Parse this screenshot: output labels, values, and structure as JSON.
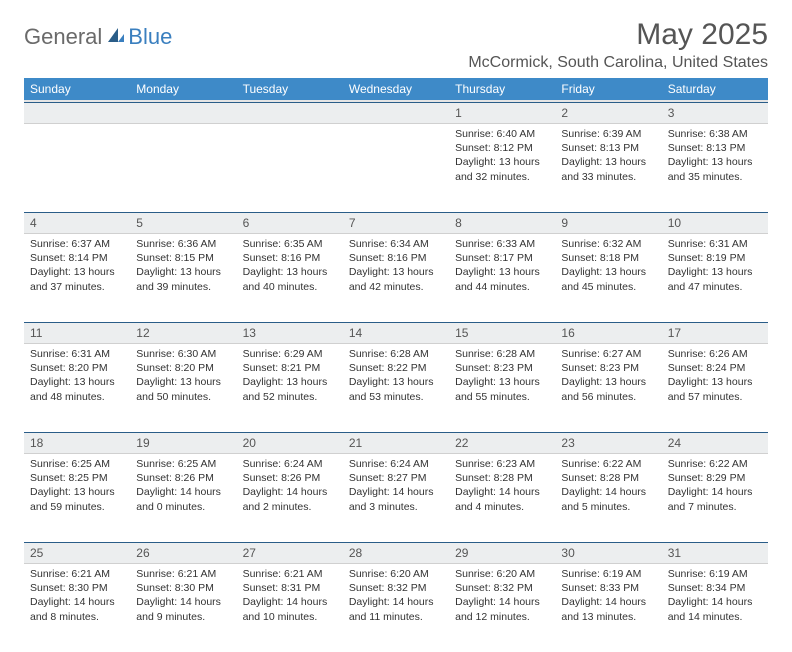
{
  "logo": {
    "general": "General",
    "blue": "Blue"
  },
  "title": "May 2025",
  "location": "McCormick, South Carolina, United States",
  "colors": {
    "header_bg": "#3e8ac8",
    "header_text": "#ffffff",
    "daynum_bg": "#eceeef",
    "rule": "#2a5d88",
    "text": "#333333",
    "logo_gray": "#6a6a6a",
    "logo_blue": "#3a7fbf"
  },
  "weekdays": [
    "Sunday",
    "Monday",
    "Tuesday",
    "Wednesday",
    "Thursday",
    "Friday",
    "Saturday"
  ],
  "weeks": [
    [
      null,
      null,
      null,
      null,
      {
        "n": "1",
        "sr": "6:40 AM",
        "ss": "8:12 PM",
        "dl": "13 hours and 32 minutes."
      },
      {
        "n": "2",
        "sr": "6:39 AM",
        "ss": "8:13 PM",
        "dl": "13 hours and 33 minutes."
      },
      {
        "n": "3",
        "sr": "6:38 AM",
        "ss": "8:13 PM",
        "dl": "13 hours and 35 minutes."
      }
    ],
    [
      {
        "n": "4",
        "sr": "6:37 AM",
        "ss": "8:14 PM",
        "dl": "13 hours and 37 minutes."
      },
      {
        "n": "5",
        "sr": "6:36 AM",
        "ss": "8:15 PM",
        "dl": "13 hours and 39 minutes."
      },
      {
        "n": "6",
        "sr": "6:35 AM",
        "ss": "8:16 PM",
        "dl": "13 hours and 40 minutes."
      },
      {
        "n": "7",
        "sr": "6:34 AM",
        "ss": "8:16 PM",
        "dl": "13 hours and 42 minutes."
      },
      {
        "n": "8",
        "sr": "6:33 AM",
        "ss": "8:17 PM",
        "dl": "13 hours and 44 minutes."
      },
      {
        "n": "9",
        "sr": "6:32 AM",
        "ss": "8:18 PM",
        "dl": "13 hours and 45 minutes."
      },
      {
        "n": "10",
        "sr": "6:31 AM",
        "ss": "8:19 PM",
        "dl": "13 hours and 47 minutes."
      }
    ],
    [
      {
        "n": "11",
        "sr": "6:31 AM",
        "ss": "8:20 PM",
        "dl": "13 hours and 48 minutes."
      },
      {
        "n": "12",
        "sr": "6:30 AM",
        "ss": "8:20 PM",
        "dl": "13 hours and 50 minutes."
      },
      {
        "n": "13",
        "sr": "6:29 AM",
        "ss": "8:21 PM",
        "dl": "13 hours and 52 minutes."
      },
      {
        "n": "14",
        "sr": "6:28 AM",
        "ss": "8:22 PM",
        "dl": "13 hours and 53 minutes."
      },
      {
        "n": "15",
        "sr": "6:28 AM",
        "ss": "8:23 PM",
        "dl": "13 hours and 55 minutes."
      },
      {
        "n": "16",
        "sr": "6:27 AM",
        "ss": "8:23 PM",
        "dl": "13 hours and 56 minutes."
      },
      {
        "n": "17",
        "sr": "6:26 AM",
        "ss": "8:24 PM",
        "dl": "13 hours and 57 minutes."
      }
    ],
    [
      {
        "n": "18",
        "sr": "6:25 AM",
        "ss": "8:25 PM",
        "dl": "13 hours and 59 minutes."
      },
      {
        "n": "19",
        "sr": "6:25 AM",
        "ss": "8:26 PM",
        "dl": "14 hours and 0 minutes."
      },
      {
        "n": "20",
        "sr": "6:24 AM",
        "ss": "8:26 PM",
        "dl": "14 hours and 2 minutes."
      },
      {
        "n": "21",
        "sr": "6:24 AM",
        "ss": "8:27 PM",
        "dl": "14 hours and 3 minutes."
      },
      {
        "n": "22",
        "sr": "6:23 AM",
        "ss": "8:28 PM",
        "dl": "14 hours and 4 minutes."
      },
      {
        "n": "23",
        "sr": "6:22 AM",
        "ss": "8:28 PM",
        "dl": "14 hours and 5 minutes."
      },
      {
        "n": "24",
        "sr": "6:22 AM",
        "ss": "8:29 PM",
        "dl": "14 hours and 7 minutes."
      }
    ],
    [
      {
        "n": "25",
        "sr": "6:21 AM",
        "ss": "8:30 PM",
        "dl": "14 hours and 8 minutes."
      },
      {
        "n": "26",
        "sr": "6:21 AM",
        "ss": "8:30 PM",
        "dl": "14 hours and 9 minutes."
      },
      {
        "n": "27",
        "sr": "6:21 AM",
        "ss": "8:31 PM",
        "dl": "14 hours and 10 minutes."
      },
      {
        "n": "28",
        "sr": "6:20 AM",
        "ss": "8:32 PM",
        "dl": "14 hours and 11 minutes."
      },
      {
        "n": "29",
        "sr": "6:20 AM",
        "ss": "8:32 PM",
        "dl": "14 hours and 12 minutes."
      },
      {
        "n": "30",
        "sr": "6:19 AM",
        "ss": "8:33 PM",
        "dl": "14 hours and 13 minutes."
      },
      {
        "n": "31",
        "sr": "6:19 AM",
        "ss": "8:34 PM",
        "dl": "14 hours and 14 minutes."
      }
    ]
  ],
  "labels": {
    "sunrise": "Sunrise: ",
    "sunset": "Sunset: ",
    "daylight": "Daylight: "
  }
}
